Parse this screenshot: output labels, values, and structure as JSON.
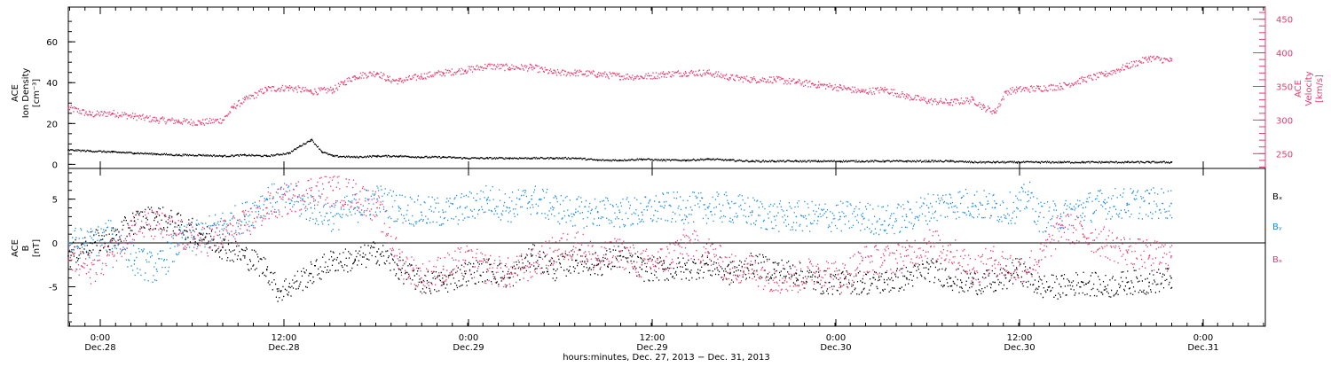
{
  "chart_data": [
    {
      "type": "scatter",
      "panel": "top",
      "ylabel_left": [
        "ACE",
        "Ion Density",
        "[cm⁻³]"
      ],
      "ylabel_right": [
        "ACE",
        "Velocity",
        "[km/s]"
      ],
      "ylim_left": [
        -2,
        77
      ],
      "ylim_right": [
        228,
        468
      ],
      "yticks_left": [
        "0",
        "20",
        "40",
        "60"
      ],
      "yticks_right": [
        "250",
        "300",
        "350",
        "400",
        "450"
      ],
      "series": [
        {
          "axis": "left",
          "color": "#000000",
          "points": [
            [
              0,
              7
            ],
            [
              2,
              6.5
            ],
            [
              4,
              6
            ],
            [
              6,
              5.5
            ],
            [
              8,
              5
            ],
            [
              10,
              4.5
            ],
            [
              12,
              4.5
            ],
            [
              14,
              4
            ],
            [
              16,
              4.5
            ],
            [
              18,
              4
            ],
            [
              20,
              5.5
            ],
            [
              21,
              9
            ],
            [
              22,
              12
            ],
            [
              23,
              6
            ],
            [
              24,
              4
            ],
            [
              26,
              3.5
            ],
            [
              28,
              4
            ],
            [
              30,
              4
            ],
            [
              32,
              3.5
            ],
            [
              34,
              3.5
            ],
            [
              36,
              3
            ],
            [
              38,
              3
            ],
            [
              40,
              3
            ],
            [
              42,
              3
            ],
            [
              44,
              3
            ],
            [
              46,
              3
            ],
            [
              48,
              2
            ],
            [
              50,
              2
            ],
            [
              52,
              2.5
            ],
            [
              54,
              2
            ],
            [
              56,
              2
            ],
            [
              58,
              2.5
            ],
            [
              60,
              2
            ],
            [
              62,
              1.5
            ],
            [
              64,
              1.5
            ],
            [
              66,
              1.5
            ],
            [
              68,
              1.5
            ],
            [
              70,
              1.5
            ],
            [
              72,
              1.5
            ],
            [
              74,
              1.5
            ],
            [
              76,
              1.5
            ],
            [
              78,
              1.5
            ],
            [
              80,
              1.5
            ],
            [
              82,
              1
            ],
            [
              84,
              1
            ],
            [
              86,
              1
            ],
            [
              88,
              1
            ],
            [
              90,
              1
            ],
            [
              92,
              1
            ],
            [
              94,
              1
            ],
            [
              96,
              1
            ],
            [
              98,
              1
            ],
            [
              100,
              1
            ]
          ]
        },
        {
          "axis": "right",
          "color": "#ea3a6b",
          "points": [
            [
              0,
              318
            ],
            [
              2,
              308
            ],
            [
              4,
              310
            ],
            [
              6,
              305
            ],
            [
              8,
              300
            ],
            [
              10,
              298
            ],
            [
              12,
              296
            ],
            [
              14,
              300
            ],
            [
              15,
              320
            ],
            [
              16,
              330
            ],
            [
              18,
              346
            ],
            [
              20,
              348
            ],
            [
              22,
              342
            ],
            [
              24,
              345
            ],
            [
              25,
              356
            ],
            [
              26,
              365
            ],
            [
              28,
              370
            ],
            [
              29,
              360
            ],
            [
              30,
              358
            ],
            [
              32,
              365
            ],
            [
              34,
              370
            ],
            [
              36,
              374
            ],
            [
              38,
              380
            ],
            [
              40,
              378
            ],
            [
              42,
              378
            ],
            [
              44,
              370
            ],
            [
              46,
              370
            ],
            [
              48,
              368
            ],
            [
              50,
              365
            ],
            [
              52,
              364
            ],
            [
              54,
              368
            ],
            [
              56,
              370
            ],
            [
              58,
              370
            ],
            [
              60,
              363
            ],
            [
              62,
              360
            ],
            [
              64,
              360
            ],
            [
              66,
              356
            ],
            [
              68,
              352
            ],
            [
              70,
              348
            ],
            [
              72,
              342
            ],
            [
              74,
              345
            ],
            [
              76,
              335
            ],
            [
              78,
              328
            ],
            [
              80,
              326
            ],
            [
              82,
              330
            ],
            [
              83,
              318
            ],
            [
              84,
              312
            ],
            [
              85,
              342
            ],
            [
              86,
              345
            ],
            [
              88,
              347
            ],
            [
              90,
              350
            ],
            [
              92,
              360
            ],
            [
              94,
              368
            ],
            [
              96,
              380
            ],
            [
              98,
              392
            ],
            [
              100,
              388
            ]
          ]
        }
      ]
    },
    {
      "type": "scatter",
      "panel": "bottom",
      "ylabel": [
        "ACE",
        "B",
        "[nT]"
      ],
      "ylim": [
        -9.5,
        8.5
      ],
      "yticks": [
        "-5",
        "0",
        "5"
      ],
      "zero_line": true,
      "legend": [
        "Bₓ",
        "Bᵧ",
        "Bₔ"
      ],
      "legend_placement": "right",
      "series": [
        {
          "name": "Bₓ",
          "color": "#000000",
          "points": [
            [
              0,
              -1.5
            ],
            [
              2,
              0
            ],
            [
              4,
              0.5
            ],
            [
              6,
              2.5
            ],
            [
              8,
              3
            ],
            [
              10,
              2
            ],
            [
              12,
              1
            ],
            [
              14,
              -0.5
            ],
            [
              16,
              -1.5
            ],
            [
              18,
              -3
            ],
            [
              19,
              -5.5
            ],
            [
              20,
              -5
            ],
            [
              22,
              -3.5
            ],
            [
              24,
              -2
            ],
            [
              26,
              -2
            ],
            [
              28,
              -1
            ],
            [
              30,
              -3
            ],
            [
              32,
              -4.5
            ],
            [
              34,
              -4.5
            ],
            [
              36,
              -3.5
            ],
            [
              38,
              -3
            ],
            [
              40,
              -4
            ],
            [
              42,
              -1.5
            ],
            [
              44,
              -3
            ],
            [
              46,
              -2
            ],
            [
              48,
              -2.5
            ],
            [
              50,
              -1.5
            ],
            [
              52,
              -3
            ],
            [
              54,
              -3
            ],
            [
              56,
              -3
            ],
            [
              58,
              -2.5
            ],
            [
              60,
              -3.5
            ],
            [
              62,
              -2.5
            ],
            [
              64,
              -3
            ],
            [
              66,
              -3.5
            ],
            [
              68,
              -4.5
            ],
            [
              70,
              -4.5
            ],
            [
              72,
              -4.5
            ],
            [
              74,
              -4.5
            ],
            [
              76,
              -4
            ],
            [
              78,
              -3
            ],
            [
              80,
              -4
            ],
            [
              81,
              -4.5
            ],
            [
              82,
              -4.5
            ],
            [
              84,
              -4.5
            ],
            [
              85,
              -4
            ],
            [
              86,
              -3
            ],
            [
              88,
              -5
            ],
            [
              90,
              -5
            ],
            [
              92,
              -4.5
            ],
            [
              94,
              -5
            ],
            [
              96,
              -4.5
            ],
            [
              98,
              -4.5
            ],
            [
              100,
              -4
            ]
          ]
        },
        {
          "name": "Bᵧ",
          "color": "#1a8be6",
          "points": [
            [
              0,
              0
            ],
            [
              2,
              0
            ],
            [
              4,
              1
            ],
            [
              6,
              -2
            ],
            [
              8,
              -3
            ],
            [
              10,
              0
            ],
            [
              12,
              1
            ],
            [
              14,
              2
            ],
            [
              16,
              3
            ],
            [
              18,
              5
            ],
            [
              20,
              5
            ],
            [
              22,
              4
            ],
            [
              24,
              3
            ],
            [
              26,
              4
            ],
            [
              28,
              5
            ],
            [
              30,
              4
            ],
            [
              32,
              3.5
            ],
            [
              34,
              3.5
            ],
            [
              36,
              4
            ],
            [
              38,
              5
            ],
            [
              40,
              4
            ],
            [
              42,
              5
            ],
            [
              44,
              4
            ],
            [
              46,
              3.5
            ],
            [
              48,
              3.5
            ],
            [
              50,
              3.5
            ],
            [
              52,
              3.5
            ],
            [
              54,
              4
            ],
            [
              56,
              4
            ],
            [
              58,
              4
            ],
            [
              60,
              4
            ],
            [
              62,
              3.5
            ],
            [
              64,
              3
            ],
            [
              66,
              3
            ],
            [
              68,
              3
            ],
            [
              70,
              3
            ],
            [
              72,
              3
            ],
            [
              74,
              2.5
            ],
            [
              76,
              3
            ],
            [
              78,
              4
            ],
            [
              80,
              4.5
            ],
            [
              82,
              4.5
            ],
            [
              84,
              4
            ],
            [
              86,
              4
            ],
            [
              87,
              5.5
            ],
            [
              88,
              3
            ],
            [
              90,
              3
            ],
            [
              92,
              4
            ],
            [
              94,
              4.5
            ],
            [
              96,
              4.5
            ],
            [
              98,
              4.5
            ],
            [
              100,
              4.5
            ]
          ]
        },
        {
          "name": "Bₔ",
          "color": "#ea3a6b",
          "points": [
            [
              0,
              -2
            ],
            [
              2,
              -3
            ],
            [
              4,
              -1
            ],
            [
              6,
              2
            ],
            [
              8,
              2
            ],
            [
              10,
              1
            ],
            [
              12,
              0
            ],
            [
              14,
              1
            ],
            [
              16,
              2
            ],
            [
              18,
              4
            ],
            [
              20,
              5
            ],
            [
              22,
              6
            ],
            [
              24,
              6
            ],
            [
              26,
              5.5
            ],
            [
              28,
              4
            ],
            [
              30,
              -2
            ],
            [
              32,
              -4
            ],
            [
              34,
              -3
            ],
            [
              36,
              -2
            ],
            [
              38,
              -3
            ],
            [
              40,
              -3.5
            ],
            [
              42,
              -2.5
            ],
            [
              44,
              -1
            ],
            [
              46,
              0
            ],
            [
              48,
              -2
            ],
            [
              50,
              -1
            ],
            [
              52,
              -2.5
            ],
            [
              54,
              -2
            ],
            [
              56,
              0
            ],
            [
              58,
              -1
            ],
            [
              60,
              -3
            ],
            [
              62,
              -3
            ],
            [
              64,
              -4
            ],
            [
              66,
              -4
            ],
            [
              68,
              -3
            ],
            [
              70,
              -4
            ],
            [
              72,
              -2
            ],
            [
              74,
              -2
            ],
            [
              76,
              -1.5
            ],
            [
              78,
              0
            ],
            [
              80,
              -1
            ],
            [
              82,
              -3
            ],
            [
              84,
              -2
            ],
            [
              86,
              -3
            ],
            [
              88,
              -2
            ],
            [
              90,
              2
            ],
            [
              92,
              1
            ],
            [
              94,
              0
            ],
            [
              96,
              -1
            ],
            [
              98,
              -1.5
            ],
            [
              100,
              -1.5
            ]
          ]
        }
      ]
    }
  ],
  "x_axis": {
    "ticks": [
      {
        "time": "0:00",
        "date": "Dec.28"
      },
      {
        "time": "12:00",
        "date": "Dec.28"
      },
      {
        "time": "0:00",
        "date": "Dec.29"
      },
      {
        "time": "12:00",
        "date": "Dec.29"
      },
      {
        "time": "0:00",
        "date": "Dec.30"
      },
      {
        "time": "12:00",
        "date": "Dec.30"
      },
      {
        "time": "0:00",
        "date": "Dec.31"
      }
    ],
    "label": "hours:minutes, Dec. 27, 2013 − Dec. 31, 2013"
  }
}
